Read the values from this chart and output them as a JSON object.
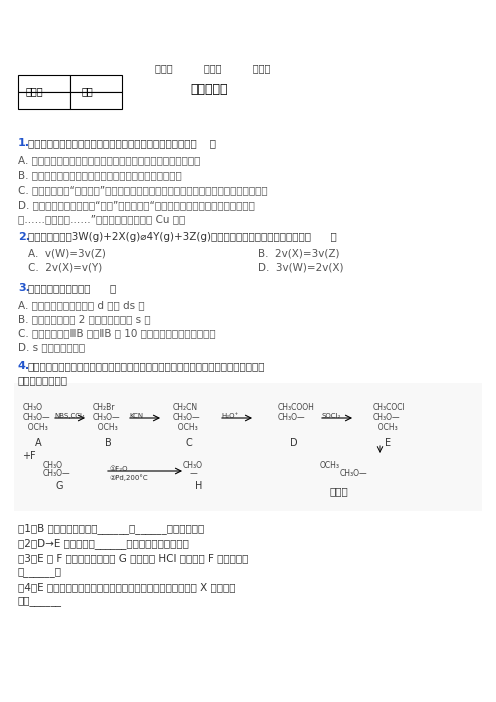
{
  "title_header": "学校：          姓名：          班级：",
  "section_title": "一、选择题",
  "table_headers": [
    "评卷人",
    "得分"
  ],
  "q1_label": "1.",
  "q1_text": "化学与生活、社会发展息息相关，下列有关说法不正确的是（    ）",
  "q1_A": "A. 将海水中的镁转化为氧化镁，再电解熏融氯化镁可制得金属镁",
  "q1_B": "B. 稻草秸秆和甘蔗渣中富含纤维素，可以用它来制造纸张",
  "q1_C": "C. 芯片制造中的“光刻技术”是利用光敏树脂在曙光条件下成像，该过程涉及到化学变化",
  "q1_D": "D. 《新修本草》中有关于“青矾”的描述为：“本来绿色，新出窩未见风者，正如瑞",
  "q1_D2": "璃……烧之赤色……”这里的赤色是析出了 Cu 单质",
  "q2_label": "2.",
  "q2_text": "对于化学反应：3W(g)+2X(g)⌀4Y(g)+3Z(g)，下列反应速率关系中，正确的是（      ）",
  "q2_A": "A.  v(W)=3v(Z)",
  "q2_B": "B.  2v(X)=3v(Z)",
  "q2_C": "C.  2v(X)=v(Y)",
  "q2_D": "D.  3v(W)=2v(X)",
  "q3_label": "3.",
  "q3_text": "下列说法中正确的是（      ）",
  "q3_A": "A. 所有金属元素都分布在 d 区和 ds 区",
  "q3_B": "B. 最外层电子数为 2 的元素都分布在 s 区",
  "q3_C": "C. 元素周期表中ⅢB 族到ⅡB 族 10 个纵列的元素都是金属元素",
  "q3_D": "D. s 区均为金属元素",
  "q4_label": "4.",
  "q4_text": "罂粟碑是一种异唷啊型生物碑，其盐酸盐可用于治疗脑血栓、抗痉动脉痉挡等。罂粟碑",
  "q4_text2": "的合成方法如下：",
  "q4_sub1": "（1）B 分子中的官能团有______和______（填名称）。",
  "q4_sub2": "（2）D→E 的转化属于______反应（填反应类型）。",
  "q4_sub3": "（3）E 和 F 发生取代反应生成 G 的同时有 HCl 生成，则 F 的结构简式",
  "q4_sub3b": "是______。",
  "q4_sub4": "（4）E 的同分异构体有多种，写出一种符合下列要求的异构体 X 的结构简",
  "q4_sub4b": "式：______",
  "bg_color": "#ffffff",
  "text_color": "#000000",
  "label_color": "#2255cc",
  "body_text_color": "#555555"
}
